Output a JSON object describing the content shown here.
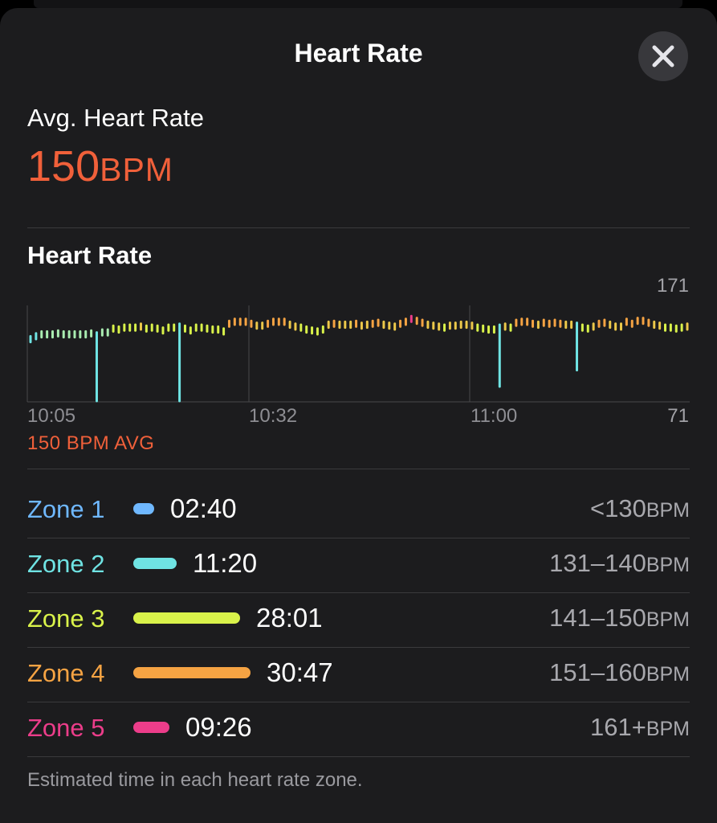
{
  "header": {
    "title": "Heart Rate",
    "close_icon": "close-icon"
  },
  "summary": {
    "label": "Avg. Heart Rate",
    "value": "150",
    "unit": "BPM"
  },
  "chart": {
    "title": "Heart Rate",
    "y_max_label": "171",
    "y_min_label": "71",
    "avg_label": "150 BPM AVG",
    "x_ticks": [
      "10:05",
      "10:32",
      "11:00"
    ]
  },
  "chart_data": {
    "type": "range-bar",
    "title": "Heart Rate",
    "ylim": [
      71,
      171
    ],
    "x_ticks": [
      "10:05",
      "10:32",
      "11:00"
    ],
    "avg": 150,
    "colors": {
      "zone1": "#6fb8ff",
      "zone2": "#6fe3e3",
      "zone3": "#d9f24a",
      "zone4": "#f5a343",
      "zone5": "#ec3d8a"
    },
    "values": [
      136,
      139,
      141,
      141,
      141,
      142,
      141,
      141,
      141,
      141,
      141,
      142,
      140,
      143,
      143,
      147,
      146,
      148,
      148,
      148,
      149,
      147,
      148,
      147,
      145,
      148,
      148,
      149,
      147,
      145,
      148,
      148,
      147,
      146,
      146,
      144,
      152,
      154,
      154,
      154,
      152,
      150,
      150,
      152,
      154,
      154,
      154,
      151,
      149,
      148,
      146,
      145,
      144,
      146,
      151,
      152,
      151,
      151,
      151,
      152,
      150,
      151,
      152,
      153,
      151,
      150,
      149,
      152,
      154,
      157,
      155,
      153,
      151,
      150,
      149,
      148,
      150,
      150,
      151,
      151,
      150,
      148,
      147,
      146,
      146,
      148,
      149,
      148,
      153,
      154,
      154,
      152,
      151,
      153,
      152,
      153,
      152,
      151,
      151,
      150,
      148,
      147,
      149,
      152,
      153,
      151,
      149,
      149,
      154,
      152,
      155,
      155,
      153,
      151,
      150,
      148,
      148,
      147,
      148,
      149
    ],
    "dips": [
      {
        "index": 12,
        "low": 71
      },
      {
        "index": 27,
        "low": 71
      },
      {
        "index": 85,
        "low": 86
      },
      {
        "index": 99,
        "low": 103
      }
    ]
  },
  "zones": [
    {
      "name": "Zone 1",
      "time": "02:40",
      "range": "<130",
      "unit": "BPM",
      "color": "#6fb8ff",
      "seconds": 160
    },
    {
      "name": "Zone 2",
      "time": "11:20",
      "range": "131–140",
      "unit": "BPM",
      "color": "#6fe3e3",
      "seconds": 680
    },
    {
      "name": "Zone 3",
      "time": "28:01",
      "range": "141–150",
      "unit": "BPM",
      "color": "#d9f24a",
      "seconds": 1681
    },
    {
      "name": "Zone 4",
      "time": "30:47",
      "range": "151–160",
      "unit": "BPM",
      "color": "#f5a343",
      "seconds": 1847
    },
    {
      "name": "Zone 5",
      "time": "09:26",
      "range": "161+",
      "unit": "BPM",
      "color": "#ec3d8a",
      "seconds": 566
    }
  ],
  "footnote": "Estimated time in each heart rate zone."
}
